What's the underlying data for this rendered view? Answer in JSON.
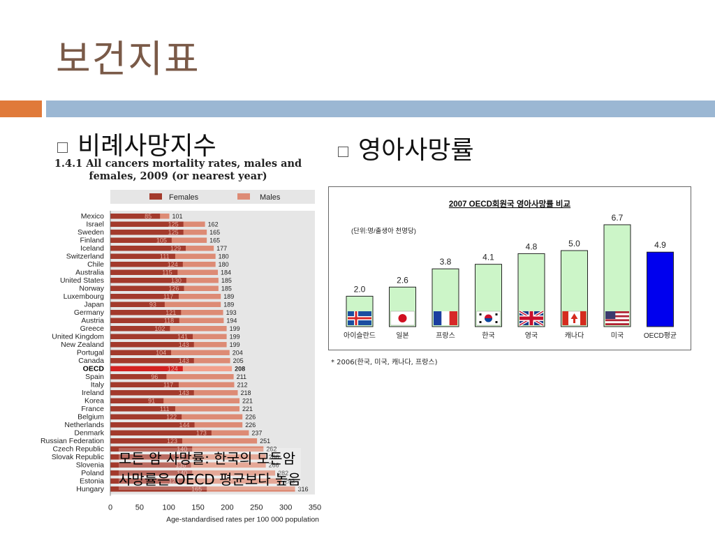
{
  "slide": {
    "title": "보건지표",
    "bullet_left": "비례사망지수",
    "bullet_right": "영아사망률",
    "overlay_line1": "모든 암 사망률: 한국의 모든암",
    "overlay_line2": "사망률은 OECD 평균보다 높음"
  },
  "colors": {
    "title": "#7a5a48",
    "accent_orange": "#e07a3a",
    "accent_blue": "#9bb7d3",
    "females": "#a33a2c",
    "males": "#dd8b75",
    "oecd_female": "#d42121",
    "oecd_male": "#f2a08c",
    "chart2_bar": "#ccf5c8",
    "chart2_oecd": "#0000ee"
  },
  "chart_data": [
    {
      "type": "bar",
      "orientation": "horizontal",
      "stacked": "overlay",
      "title": "1.4.1 All cancers mortality rates, males and females, 2009 (or nearest year)",
      "xlabel": "Age-standardised rates per 100 000 population",
      "xlim": [
        0,
        350
      ],
      "xticks": [
        0,
        50,
        100,
        150,
        200,
        250,
        300,
        350
      ],
      "legend": [
        "Females",
        "Males"
      ],
      "legend_position": "top",
      "categories": [
        "Mexico",
        "Israel",
        "Sweden",
        "Finland",
        "Iceland",
        "Switzerland",
        "Chile",
        "Australia",
        "United States",
        "Norway",
        "Luxembourg",
        "Japan",
        "Germany",
        "Austria",
        "Greece",
        "United Kingdom",
        "New Zealand",
        "Portugal",
        "Canada",
        "OECD",
        "Spain",
        "Italy",
        "Ireland",
        "Korea",
        "France",
        "Belgium",
        "Netherlands",
        "Denmark",
        "Russian Federation",
        "Czech Republic",
        "Slovak Republic",
        "Slovenia",
        "Poland",
        "Estonia",
        "Hungary"
      ],
      "series": [
        {
          "name": "Females",
          "values": [
            85,
            125,
            125,
            105,
            129,
            111,
            124,
            115,
            130,
            126,
            117,
            93,
            121,
            118,
            102,
            141,
            143,
            104,
            143,
            124,
            96,
            117,
            143,
            91,
            111,
            122,
            144,
            173,
            123,
            140,
            135,
            138,
            140,
            126,
            165
          ]
        },
        {
          "name": "Males",
          "values": [
            101,
            162,
            165,
            165,
            177,
            180,
            180,
            184,
            185,
            185,
            189,
            189,
            193,
            194,
            199,
            199,
            199,
            204,
            205,
            208,
            211,
            212,
            218,
            221,
            221,
            226,
            226,
            237,
            251,
            262,
            266,
            266,
            282,
            293,
            316
          ]
        }
      ],
      "highlight": "OECD"
    },
    {
      "type": "bar",
      "title": "2007 OECD회원국 영아사망률 비교",
      "unit_label": "(단위:명/출생아 천명당)",
      "categories": [
        "아이슬란드",
        "일본",
        "프랑스",
        "한국",
        "영국",
        "캐나다",
        "미국",
        "OECD평균"
      ],
      "values": [
        2.0,
        2.6,
        3.8,
        4.1,
        4.8,
        5.0,
        6.7,
        4.9
      ],
      "value_labels": [
        "2.0",
        "2.6",
        "3.8",
        "4.1",
        "4.8",
        "5.0",
        "6.7",
        "4.9"
      ],
      "ylim": [
        0,
        7.2
      ],
      "flags": [
        "iceland-flag",
        "japan-flag",
        "france-flag",
        "korea-flag",
        "uk-flag",
        "canada-flag",
        "usa-flag",
        ""
      ],
      "footnote": "* 2006(한국, 미국, 캐나다, 프랑스)"
    }
  ]
}
